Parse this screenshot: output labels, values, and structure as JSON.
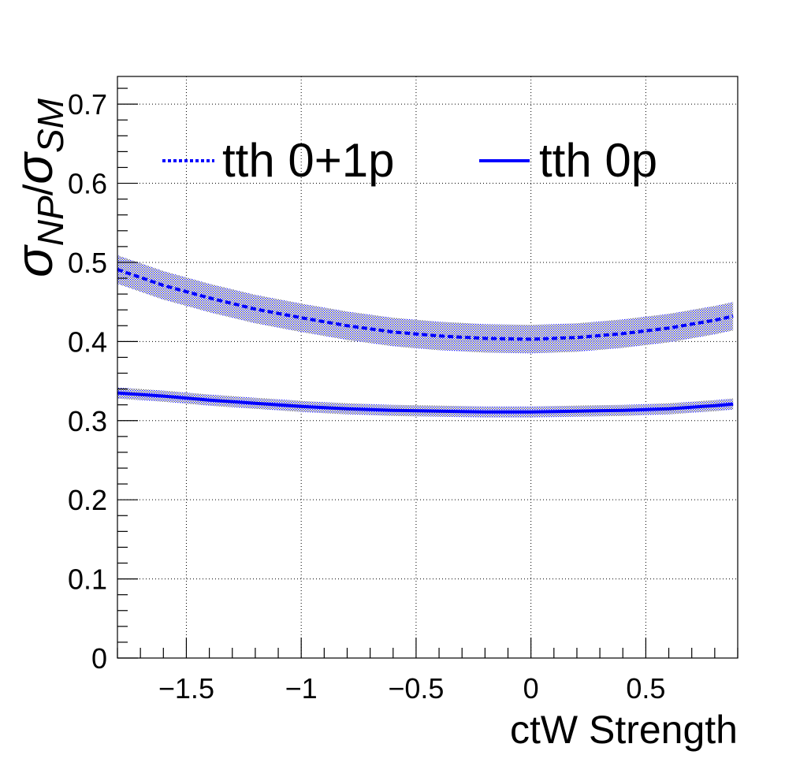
{
  "chart_data": {
    "type": "line",
    "xlabel": "ctW Strength",
    "ylabel": {
      "sigma": "σ",
      "np_subscript": "NP",
      "slash": "/",
      "sm_subscript": "SM"
    },
    "xlim": [
      -1.8,
      0.9
    ],
    "ylim": [
      0,
      0.735
    ],
    "x_ticks": [
      -1.5,
      -1,
      -0.5,
      0,
      0.5
    ],
    "x_tick_labels": [
      "−1.5",
      "−1",
      "−0.5",
      "0",
      "0.5"
    ],
    "y_ticks": [
      0,
      0.1,
      0.2,
      0.3,
      0.4,
      0.5,
      0.6,
      0.7
    ],
    "y_tick_labels": [
      "0",
      "0.1",
      "0.2",
      "0.3",
      "0.4",
      "0.5",
      "0.6",
      "0.7"
    ],
    "grid": true,
    "legend_position": "top",
    "series": [
      {
        "name": "tth 0+1p",
        "style": "dashed",
        "color": "#0000ff",
        "x": [
          -1.8,
          -1.6,
          -1.4,
          -1.2,
          -1.0,
          -0.8,
          -0.6,
          -0.4,
          -0.2,
          0.0,
          0.2,
          0.4,
          0.6,
          0.8,
          0.88
        ],
        "y": [
          0.491,
          0.471,
          0.455,
          0.441,
          0.43,
          0.42,
          0.412,
          0.407,
          0.404,
          0.403,
          0.405,
          0.41,
          0.417,
          0.427,
          0.432
        ],
        "band": 0.018
      },
      {
        "name": "tth 0p",
        "style": "solid",
        "color": "#0000ff",
        "x": [
          -1.8,
          -1.6,
          -1.4,
          -1.2,
          -1.0,
          -0.8,
          -0.6,
          -0.4,
          -0.2,
          0.0,
          0.2,
          0.4,
          0.6,
          0.8,
          0.88
        ],
        "y": [
          0.335,
          0.331,
          0.326,
          0.322,
          0.318,
          0.315,
          0.313,
          0.312,
          0.311,
          0.311,
          0.312,
          0.313,
          0.315,
          0.319,
          0.321
        ],
        "band": 0.007
      }
    ]
  }
}
